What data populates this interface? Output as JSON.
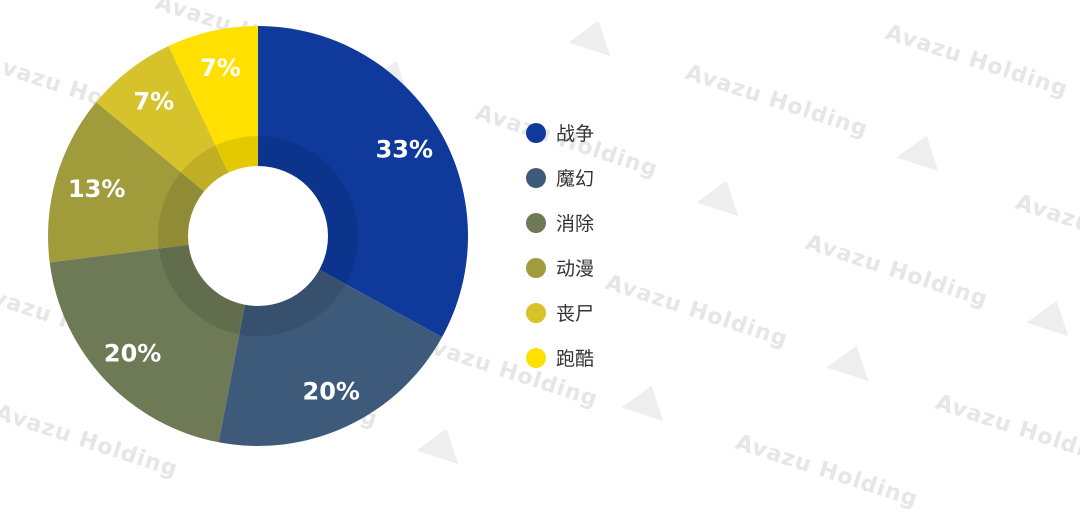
{
  "chart_data": {
    "type": "pie",
    "style": "donut",
    "categories": [
      "战争",
      "魔幻",
      "消除",
      "动漫",
      "丧尸",
      "跑酷"
    ],
    "values": [
      33,
      20,
      20,
      13,
      7,
      7
    ],
    "labels": [
      "33%",
      "20%",
      "20%",
      "13%",
      "7%",
      "7%"
    ],
    "colors": [
      "#0f3a9c",
      "#3e5a7a",
      "#6e7a56",
      "#a09c3c",
      "#d6c22a",
      "#ffe000"
    ],
    "legend_position": "right"
  },
  "watermark": {
    "text": "Avazu Holding"
  }
}
